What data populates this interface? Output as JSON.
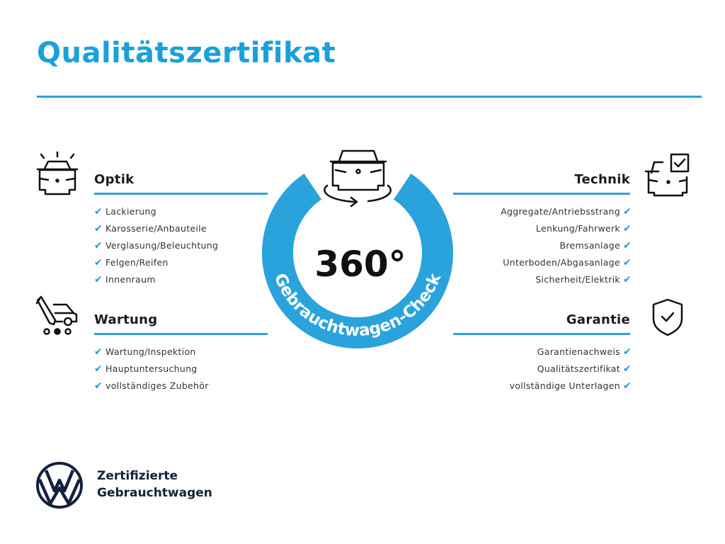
{
  "title": "Qualitätszertifikat",
  "colors": {
    "accent": "#2aa3dc",
    "dark": "#14213d"
  },
  "center": {
    "number": "360°",
    "ring_text": "Gebrauchtwagen-Check",
    "icon": "car-rotate-icon"
  },
  "sections": {
    "optik": {
      "heading": "Optik",
      "icon": "car-lights-icon",
      "items": [
        "Lackierung",
        "Karosserie/Anbauteile",
        "Verglasung/Beleuchtung",
        "Felgen/Reifen",
        "Innenraum"
      ]
    },
    "wartung": {
      "heading": "Wartung",
      "icon": "service-tools-icon",
      "items": [
        "Wartung/Inspektion",
        "Hauptuntersuchung",
        "vollständiges Zubehör"
      ]
    },
    "technik": {
      "heading": "Technik",
      "icon": "car-checklist-icon",
      "items": [
        "Aggregate/Antriebsstrang",
        "Lenkung/Fahrwerk",
        "Bremsanlage",
        "Unterboden/Abgasanlage",
        "Sicherheit/Elektrik"
      ]
    },
    "garantie": {
      "heading": "Garantie",
      "icon": "shield-check-icon",
      "items": [
        "Garantienachweis",
        "Qualitätszertifikat",
        "vollständige Unterlagen"
      ]
    }
  },
  "check_glyph": "✔",
  "footer": {
    "line1": "Zertifizierte",
    "line2": "Gebrauchtwagen",
    "logo": "vw-logo"
  }
}
